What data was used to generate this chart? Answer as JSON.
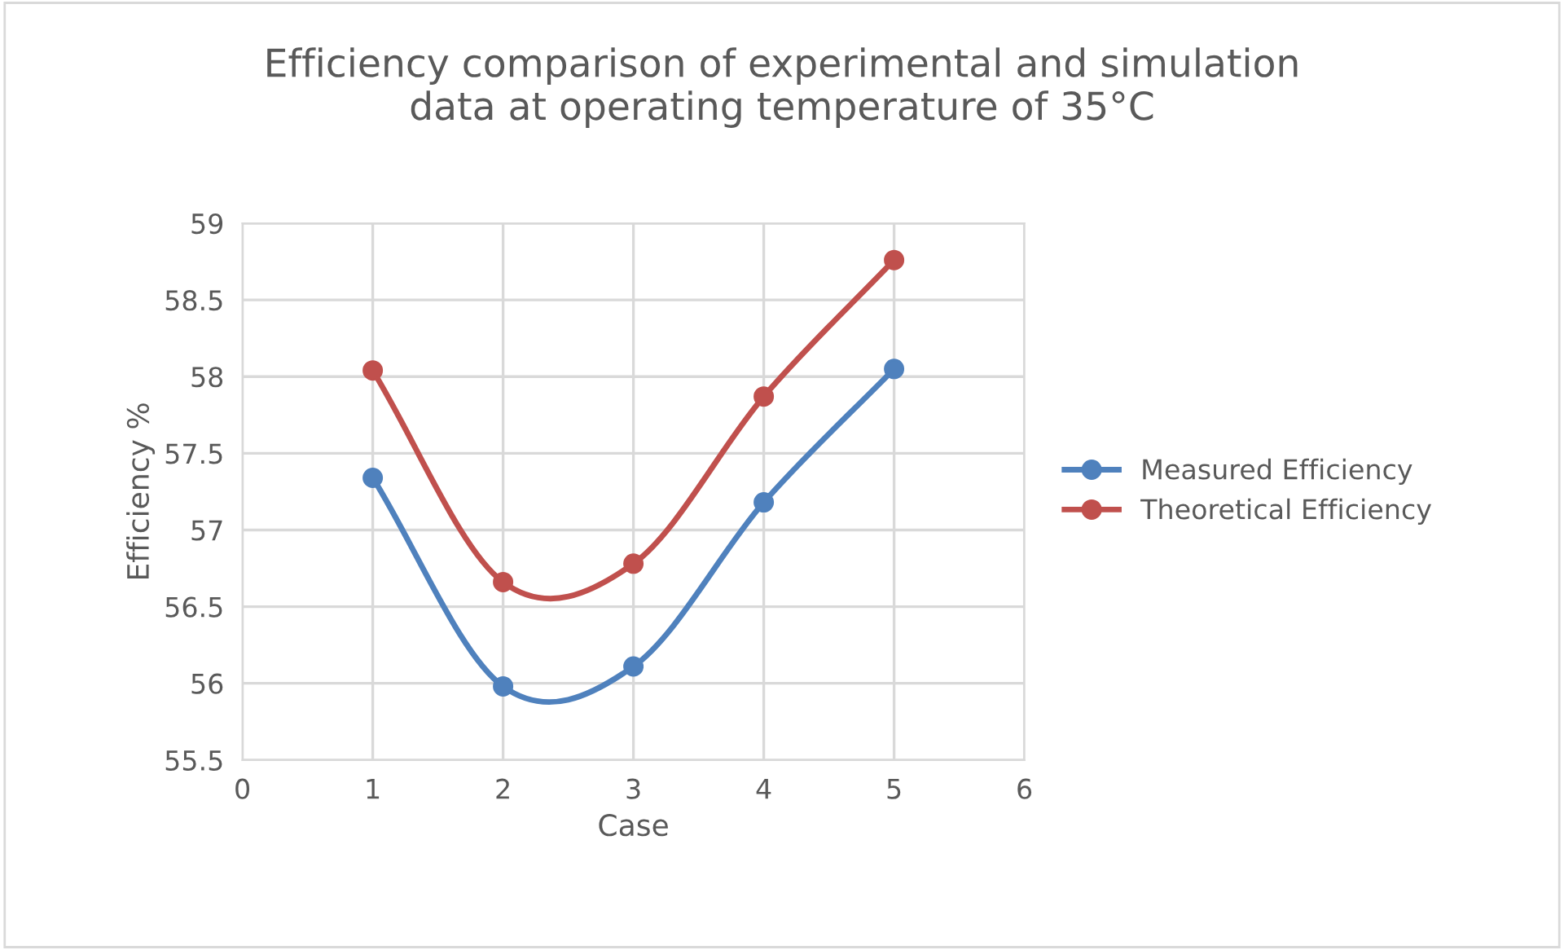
{
  "chart_data": {
    "type": "line",
    "title": "Efficiency comparison of experimental and simulation\ndata at operating temperature of 35°C",
    "xlabel": "Case",
    "ylabel": "Efficiency %",
    "x": [
      1,
      2,
      3,
      4,
      5
    ],
    "series": [
      {
        "name": "Measured Efficiency",
        "color": "#4f81bd",
        "values": [
          57.34,
          55.98,
          56.11,
          57.18,
          58.05
        ]
      },
      {
        "name": "Theoretical Efficiency",
        "color": "#c0504d",
        "values": [
          58.04,
          56.66,
          56.78,
          57.87,
          58.76
        ]
      }
    ],
    "xlim": [
      0,
      6
    ],
    "xticks": [
      0,
      1,
      2,
      3,
      4,
      5,
      6
    ],
    "ylim": [
      55.5,
      59
    ],
    "yticks": [
      55.5,
      56,
      56.5,
      57,
      57.5,
      58,
      58.5,
      59
    ],
    "grid": true,
    "legend": "right",
    "marker": "circle",
    "line_style": "solid"
  }
}
